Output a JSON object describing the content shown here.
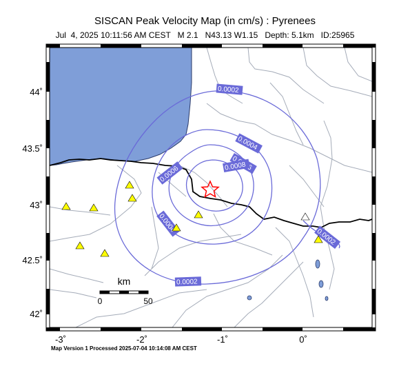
{
  "title": "SISCAN Peak Velocity Map (in cm/s) : Pyrenees",
  "subtitle": "Jul  4, 2025 10:11:56 AM CEST   M 2.1   N43.13 W1.15   Depth: 5.1km   ID:25965",
  "footer": "Map Version 1 Processed 2025-07-04 10:14:08 AM CEST",
  "axes": {
    "lat_ticks": [
      "44˚",
      "43.5˚",
      "43˚",
      "42.5˚",
      "42˚"
    ],
    "lon_ticks": [
      "-3˚",
      "-2˚",
      "-1˚",
      "0˚"
    ]
  },
  "scale_bar": {
    "unit": "km",
    "start": "0",
    "end": "50"
  },
  "contours": {
    "label_a": "0.0002",
    "label_b": "0.0004",
    "label_c": "0.0006",
    "label_d": "0.0006",
    "label_e": "0.0004",
    "label_f": "0.0002",
    "label_g": "0.0002",
    "label_h": "0.0008"
  },
  "epicenter": {
    "lat": 43.13,
    "lon": -1.15
  },
  "colors": {
    "sea": "#7f9ed8",
    "contour": "#6a6ad8",
    "label_bg": "#6a6ad8",
    "border": "#000000",
    "rivers": "#9aa2b0",
    "station": "#ffff00",
    "epicenter": "#ff0000"
  }
}
